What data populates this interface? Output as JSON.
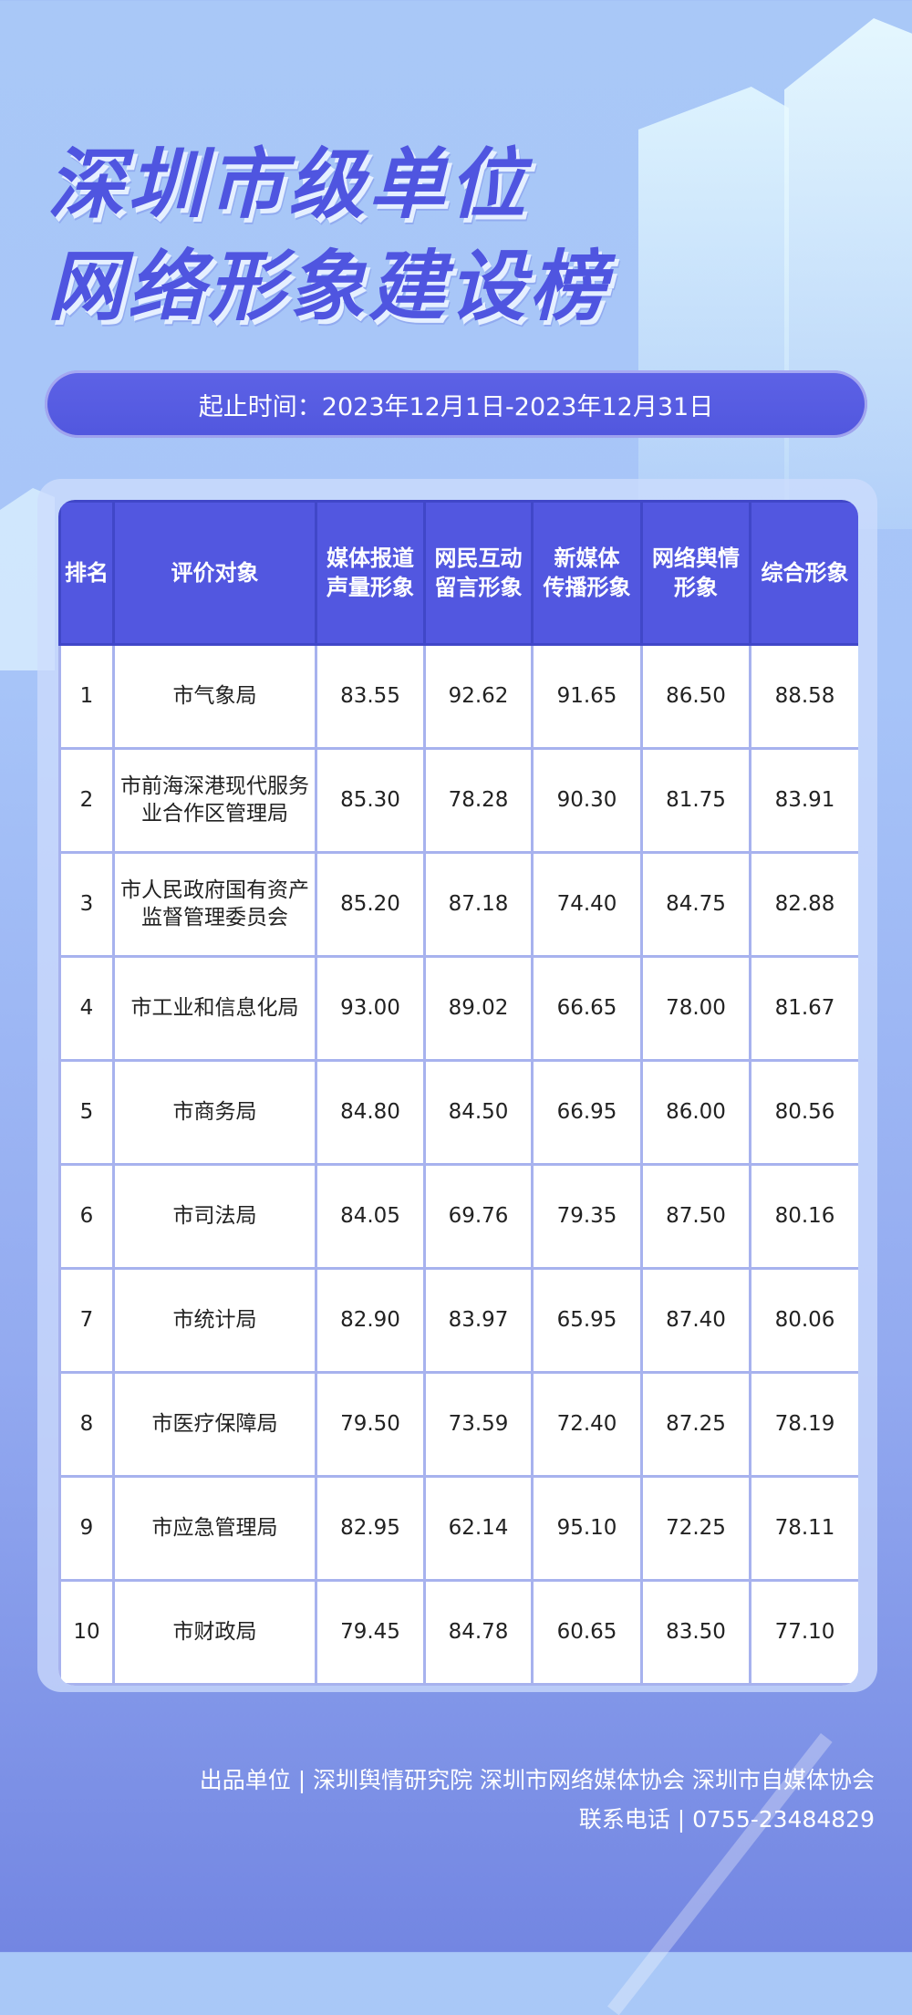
{
  "title": {
    "line1": "深圳市级单位",
    "line2": "网络形象建设榜"
  },
  "date_range": "起止时间：2023年12月1日-2023年12月31日",
  "colors": {
    "accent": "#5257e0",
    "background": "#a7c4f8",
    "grid": "#a7b2ee"
  },
  "table": {
    "headers": [
      "排名",
      "评价对象",
      "媒体报道声量形象",
      "网民互动留言形象",
      "新媒体传播形象",
      "网络舆情形象",
      "综合形象"
    ],
    "header_lines": [
      [
        "排名"
      ],
      [
        "评价对象"
      ],
      [
        "媒体报道",
        "声量形象"
      ],
      [
        "网民互动",
        "留言形象"
      ],
      [
        "新媒体",
        "传播形象"
      ],
      [
        "网络舆情",
        "形象"
      ],
      [
        "综合形象"
      ]
    ],
    "rows": [
      {
        "rank": "1",
        "name": [
          "市气象局"
        ],
        "scores": [
          "83.55",
          "92.62",
          "91.65",
          "86.50",
          "88.58"
        ]
      },
      {
        "rank": "2",
        "name": [
          "市前海深港现代服务",
          "业合作区管理局"
        ],
        "scores": [
          "85.30",
          "78.28",
          "90.30",
          "81.75",
          "83.91"
        ]
      },
      {
        "rank": "3",
        "name": [
          "市人民政府国有资产",
          "监督管理委员会"
        ],
        "scores": [
          "85.20",
          "87.18",
          "74.40",
          "84.75",
          "82.88"
        ]
      },
      {
        "rank": "4",
        "name": [
          "市工业和信息化局"
        ],
        "scores": [
          "93.00",
          "89.02",
          "66.65",
          "78.00",
          "81.67"
        ]
      },
      {
        "rank": "5",
        "name": [
          "市商务局"
        ],
        "scores": [
          "84.80",
          "84.50",
          "66.95",
          "86.00",
          "80.56"
        ]
      },
      {
        "rank": "6",
        "name": [
          "市司法局"
        ],
        "scores": [
          "84.05",
          "69.76",
          "79.35",
          "87.50",
          "80.16"
        ]
      },
      {
        "rank": "7",
        "name": [
          "市统计局"
        ],
        "scores": [
          "82.90",
          "83.97",
          "65.95",
          "87.40",
          "80.06"
        ]
      },
      {
        "rank": "8",
        "name": [
          "市医疗保障局"
        ],
        "scores": [
          "79.50",
          "73.59",
          "72.40",
          "87.25",
          "78.19"
        ]
      },
      {
        "rank": "9",
        "name": [
          "市应急管理局"
        ],
        "scores": [
          "82.95",
          "62.14",
          "95.10",
          "72.25",
          "78.11"
        ]
      },
      {
        "rank": "10",
        "name": [
          "市财政局"
        ],
        "scores": [
          "79.45",
          "84.78",
          "60.65",
          "83.50",
          "77.10"
        ]
      }
    ]
  },
  "footer": {
    "producer": "出品单位 | 深圳舆情研究院 深圳市网络媒体协会 深圳市自媒体协会",
    "contact": "联系电话 | 0755-23484829"
  }
}
